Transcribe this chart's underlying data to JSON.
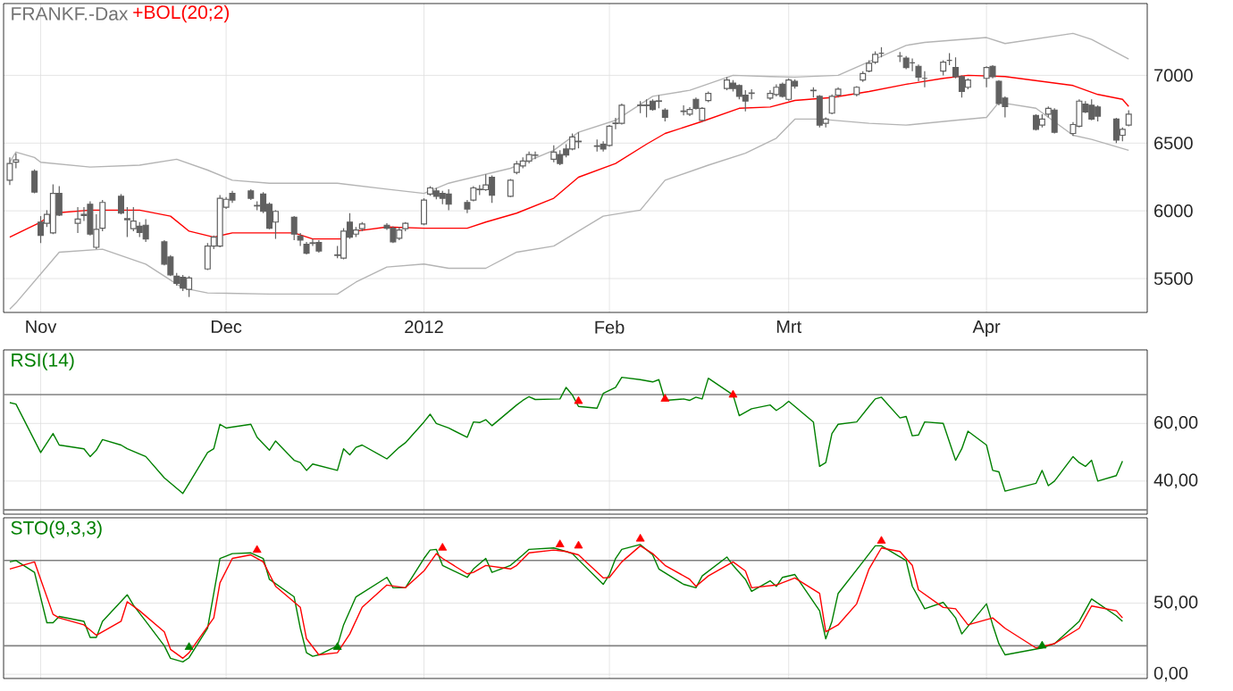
{
  "chart_data": [
    {
      "type": "candlestick",
      "title": "FRANKF.-Dax",
      "color": "#606060",
      "x": [
        "2011-10-27",
        "2011-10-28",
        "2011-10-31",
        "2011-11-01",
        "2011-11-02",
        "2011-11-03",
        "2011-11-04",
        "2011-11-07",
        "2011-11-08",
        "2011-11-09",
        "2011-11-10",
        "2011-11-11",
        "2011-11-14",
        "2011-11-15",
        "2011-11-16",
        "2011-11-17",
        "2011-11-18",
        "2011-11-21",
        "2011-11-22",
        "2011-11-23",
        "2011-11-24",
        "2011-11-25",
        "2011-11-28",
        "2011-11-29",
        "2011-11-30",
        "2011-12-01",
        "2011-12-02",
        "2011-12-05",
        "2011-12-06",
        "2011-12-07",
        "2011-12-08",
        "2011-12-09",
        "2011-12-12",
        "2011-12-13",
        "2011-12-14",
        "2011-12-15",
        "2011-12-16",
        "2011-12-19",
        "2011-12-20",
        "2011-12-21",
        "2011-12-22",
        "2011-12-23",
        "2011-12-27",
        "2011-12-28",
        "2011-12-29",
        "2011-12-30",
        "2012-01-02",
        "2012-01-03",
        "2012-01-04",
        "2012-01-05",
        "2012-01-06",
        "2012-01-09",
        "2012-01-10",
        "2012-01-11",
        "2012-01-12",
        "2012-01-13",
        "2012-01-16",
        "2012-01-17",
        "2012-01-18",
        "2012-01-19",
        "2012-01-20",
        "2012-01-23",
        "2012-01-24",
        "2012-01-25",
        "2012-01-26",
        "2012-01-27",
        "2012-01-30",
        "2012-01-31",
        "2012-02-01",
        "2012-02-02",
        "2012-02-03",
        "2012-02-06",
        "2012-02-07",
        "2012-02-08",
        "2012-02-09",
        "2012-02-10",
        "2012-02-13",
        "2012-02-14",
        "2012-02-15",
        "2012-02-16",
        "2012-02-17",
        "2012-02-20",
        "2012-02-21",
        "2012-02-22",
        "2012-02-23",
        "2012-02-24",
        "2012-02-27",
        "2012-02-28",
        "2012-02-29",
        "2012-03-01",
        "2012-03-02",
        "2012-03-05",
        "2012-03-06",
        "2012-03-07",
        "2012-03-08",
        "2012-03-09",
        "2012-03-12",
        "2012-03-13",
        "2012-03-14",
        "2012-03-15",
        "2012-03-16",
        "2012-03-19",
        "2012-03-20",
        "2012-03-21",
        "2012-03-22",
        "2012-03-23",
        "2012-03-26",
        "2012-03-27",
        "2012-03-28",
        "2012-03-29",
        "2012-03-30",
        "2012-04-02",
        "2012-04-03",
        "2012-04-04",
        "2012-04-05",
        "2012-04-10",
        "2012-04-11",
        "2012-04-12",
        "2012-04-13",
        "2012-04-16",
        "2012-04-17",
        "2012-04-18",
        "2012-04-19",
        "2012-04-20",
        "2012-04-23",
        "2012-04-24",
        "2012-04-25"
      ],
      "ohlc": [
        [
          6226,
          6394,
          6191,
          6350
        ],
        [
          6359,
          6425,
          6314,
          6376
        ],
        [
          6292,
          6306,
          6129,
          6138
        ],
        [
          5917,
          5961,
          5762,
          5819
        ],
        [
          5908,
          6005,
          5881,
          5974
        ],
        [
          5837,
          6195,
          5828,
          6129
        ],
        [
          6129,
          6182,
          5961,
          5969
        ],
        [
          5908,
          6027,
          5837,
          5939
        ],
        [
          5965,
          6027,
          5925,
          5974
        ],
        [
          6049,
          6071,
          5819,
          5828
        ],
        [
          5731,
          5974,
          5717,
          5864
        ],
        [
          5872,
          6080,
          5850,
          6062
        ],
        [
          6107,
          6124,
          5974,
          5983
        ],
        [
          5934,
          6027,
          5806,
          5943
        ],
        [
          5868,
          6027,
          5850,
          5925
        ],
        [
          5886,
          5917,
          5806,
          5841
        ],
        [
          5894,
          5939,
          5771,
          5793
        ],
        [
          5771,
          5784,
          5598,
          5607
        ],
        [
          5660,
          5673,
          5518,
          5527
        ],
        [
          5518,
          5541,
          5448,
          5465
        ],
        [
          5510,
          5527,
          5408,
          5430
        ],
        [
          5421,
          5518,
          5364,
          5505
        ],
        [
          5571,
          5762,
          5563,
          5740
        ],
        [
          5740,
          5819,
          5717,
          5806
        ],
        [
          5740,
          6116,
          5731,
          6093
        ],
        [
          6027,
          6102,
          6014,
          6085
        ],
        [
          6129,
          6147,
          6058,
          6080
        ],
        [
          6147,
          6160,
          6080,
          6093
        ],
        [
          6040,
          6071,
          6005,
          6036
        ],
        [
          6124,
          6138,
          5983,
          5996
        ],
        [
          6049,
          6062,
          5864,
          5872
        ],
        [
          5917,
          6005,
          5793,
          5996
        ],
        [
          5952,
          5961,
          5784,
          5828
        ],
        [
          5815,
          5837,
          5740,
          5784
        ],
        [
          5753,
          5771,
          5678,
          5687
        ],
        [
          5760,
          5793,
          5740,
          5764
        ],
        [
          5766,
          5784,
          5691,
          5704
        ],
        [
          5675,
          5740,
          5651,
          5671
        ],
        [
          5651,
          5872,
          5642,
          5850
        ],
        [
          5917,
          5983,
          5793,
          5806
        ],
        [
          5828,
          5881,
          5806,
          5859
        ],
        [
          5868,
          5917,
          5850,
          5903
        ],
        [
          5894,
          5908,
          5859,
          5872
        ],
        [
          5872,
          5886,
          5762,
          5771
        ],
        [
          5797,
          5881,
          5784,
          5859
        ],
        [
          5868,
          5917,
          5850,
          5908
        ],
        [
          5903,
          6093,
          5894,
          6080
        ],
        [
          6124,
          6182,
          6111,
          6169
        ],
        [
          6147,
          6169,
          6085,
          6107
        ],
        [
          6129,
          6147,
          6049,
          6093
        ],
        [
          6124,
          6160,
          6005,
          6049
        ],
        [
          6062,
          6080,
          5983,
          6014
        ],
        [
          6080,
          6182,
          6071,
          6169
        ],
        [
          6156,
          6191,
          6116,
          6160
        ],
        [
          6156,
          6270,
          6147,
          6191
        ],
        [
          6248,
          6262,
          6058,
          6116
        ],
        [
          6107,
          6235,
          6102,
          6226
        ],
        [
          6284,
          6368,
          6270,
          6346
        ],
        [
          6332,
          6394,
          6314,
          6368
        ],
        [
          6368,
          6438,
          6350,
          6416
        ],
        [
          6410,
          6438,
          6381,
          6412
        ],
        [
          6381,
          6483,
          6359,
          6434
        ],
        [
          6416,
          6447,
          6337,
          6350
        ],
        [
          6456,
          6492,
          6394,
          6412
        ],
        [
          6456,
          6571,
          6447,
          6545
        ],
        [
          6510,
          6580,
          6461,
          6514
        ],
        [
          6476,
          6527,
          6438,
          6480
        ],
        [
          6492,
          6514,
          6438,
          6456
        ],
        [
          6483,
          6633,
          6474,
          6624
        ],
        [
          6644,
          6686,
          6602,
          6648
        ],
        [
          6646,
          6792,
          6637,
          6779
        ],
        [
          6777,
          6810,
          6721,
          6781
        ],
        [
          6781,
          6823,
          6690,
          6777
        ],
        [
          6810,
          6823,
          6739,
          6748
        ],
        [
          6808,
          6854,
          6757,
          6812
        ],
        [
          6744,
          6757,
          6660,
          6690
        ],
        [
          6737,
          6779,
          6704,
          6733
        ],
        [
          6713,
          6766,
          6699,
          6748
        ],
        [
          6823,
          6836,
          6748,
          6757
        ],
        [
          6668,
          6766,
          6660,
          6757
        ],
        [
          6814,
          6881,
          6801,
          6867
        ],
        [
          6903,
          6987,
          6890,
          6965
        ],
        [
          6943,
          6965,
          6881,
          6903
        ],
        [
          6925,
          6934,
          6823,
          6845
        ],
        [
          6854,
          6890,
          6735,
          6810
        ],
        [
          6867,
          6898,
          6823,
          6870
        ],
        [
          6832,
          6890,
          6819,
          6867
        ],
        [
          6859,
          6934,
          6845,
          6912
        ],
        [
          6934,
          6947,
          6836,
          6845
        ],
        [
          6823,
          6978,
          6814,
          6965
        ],
        [
          6956,
          6969,
          6903,
          6921
        ],
        [
          6890,
          6912,
          6836,
          6887
        ],
        [
          6845,
          6854,
          6615,
          6633
        ],
        [
          6646,
          6690,
          6615,
          6677
        ],
        [
          6721,
          6859,
          6713,
          6845
        ],
        [
          6854,
          6912,
          6836,
          6898
        ],
        [
          6859,
          6921,
          6845,
          6912
        ],
        [
          6965,
          7031,
          6952,
          7014
        ],
        [
          7031,
          7111,
          7022,
          7089
        ],
        [
          7098,
          7177,
          7084,
          7155
        ],
        [
          7164,
          7208,
          7133,
          7164
        ],
        [
          7142,
          7173,
          7098,
          7142
        ],
        [
          7128,
          7142,
          7045,
          7058
        ],
        [
          7093,
          7124,
          7031,
          7093
        ],
        [
          7067,
          7080,
          6956,
          6987
        ],
        [
          6978,
          7031,
          6912,
          6978
        ],
        [
          7031,
          7111,
          7000,
          7098
        ],
        [
          7111,
          7164,
          7075,
          7111
        ],
        [
          7058,
          7133,
          6978,
          6991
        ],
        [
          6991,
          7000,
          6836,
          6881
        ],
        [
          6912,
          6978,
          6898,
          6965
        ],
        [
          6978,
          7067,
          6912,
          7058
        ],
        [
          7067,
          7075,
          6978,
          6991
        ],
        [
          6956,
          6965,
          6779,
          6792
        ],
        [
          6832,
          6845,
          6690,
          6770
        ],
        [
          6704,
          6713,
          6593,
          6602
        ],
        [
          6633,
          6713,
          6615,
          6677
        ],
        [
          6713,
          6770,
          6690,
          6757
        ],
        [
          6744,
          6757,
          6571,
          6580
        ],
        [
          6571,
          6655,
          6553,
          6637
        ],
        [
          6624,
          6823,
          6615,
          6810
        ],
        [
          6788,
          6810,
          6721,
          6730
        ],
        [
          6779,
          6823,
          6668,
          6677
        ],
        [
          6766,
          6779,
          6660,
          6699
        ],
        [
          6677,
          6686,
          6500,
          6522
        ],
        [
          6558,
          6615,
          6514,
          6602
        ],
        [
          6633,
          6743,
          6624,
          6713
        ]
      ],
      "series": [
        {
          "type": "line",
          "color": "#b4b4b4",
          "x": [
            "2011-10-27",
            "2011-10-28",
            "2011-10-31",
            "2011-11-01",
            "2011-11-09",
            "2011-11-17",
            "2011-11-23",
            "2011-11-28",
            "2011-12-02",
            "2011-12-08",
            "2011-12-19",
            "2011-12-27",
            "2012-01-02",
            "2012-01-06",
            "2012-01-16",
            "2012-01-23",
            "2012-01-27",
            "2012-02-02",
            "2012-02-08",
            "2012-02-14",
            "2012-02-21",
            "2012-02-27",
            "2012-03-02",
            "2012-03-09",
            "2012-03-20",
            "2012-03-23",
            "2012-04-02",
            "2012-04-05",
            "2012-04-16",
            "2012-04-19",
            "2012-04-25"
          ],
          "values": [
            6359,
            6434,
            6394,
            6359,
            6323,
            6337,
            6381,
            6301,
            6226,
            6204,
            6204,
            6160,
            6129,
            6204,
            6314,
            6447,
            6580,
            6668,
            6845,
            6890,
            7000,
            6991,
            6987,
            7000,
            7221,
            7243,
            7279,
            7235,
            7310,
            7265,
            7120
          ]
        },
        {
          "type": "line",
          "color": "#b4b4b4",
          "x": [
            "2011-10-27",
            "2011-10-28",
            "2011-11-04",
            "2011-11-11",
            "2011-11-18",
            "2011-11-24",
            "2011-11-28",
            "2011-12-08",
            "2011-12-19",
            "2011-12-22",
            "2011-12-27",
            "2012-01-02",
            "2012-01-06",
            "2012-01-12",
            "2012-01-17",
            "2012-01-23",
            "2012-01-31",
            "2012-02-06",
            "2012-02-10",
            "2012-02-17",
            "2012-02-23",
            "2012-02-28",
            "2012-03-02",
            "2012-03-06",
            "2012-03-14",
            "2012-03-20",
            "2012-03-28",
            "2012-04-02",
            "2012-04-04",
            "2012-04-10",
            "2012-04-16",
            "2012-04-19",
            "2012-04-25"
          ],
          "values": [
            5275,
            5320,
            5695,
            5717,
            5607,
            5430,
            5394,
            5386,
            5386,
            5474,
            5585,
            5607,
            5576,
            5576,
            5695,
            5740,
            5961,
            6005,
            6226,
            6337,
            6425,
            6536,
            6677,
            6677,
            6646,
            6633,
            6668,
            6690,
            6801,
            6757,
            6558,
            6527,
            6447
          ]
        },
        {
          "type": "line",
          "name": "+BOL(20;2)",
          "color": "#ff0000",
          "x": [
            "2011-10-27",
            "2011-11-01",
            "2011-11-03",
            "2011-11-09",
            "2011-11-17",
            "2011-11-22",
            "2011-11-25",
            "2011-11-29",
            "2011-12-02",
            "2011-12-12",
            "2011-12-15",
            "2011-12-20",
            "2011-12-22",
            "2011-12-27",
            "2012-01-02",
            "2012-01-09",
            "2012-01-12",
            "2012-01-17",
            "2012-01-23",
            "2012-01-27",
            "2012-02-02",
            "2012-02-07",
            "2012-02-10",
            "2012-02-16",
            "2012-02-22",
            "2012-02-27",
            "2012-03-02",
            "2012-03-08",
            "2012-03-14",
            "2012-03-20",
            "2012-03-26",
            "2012-03-30",
            "2012-04-05",
            "2012-04-16",
            "2012-04-20",
            "2012-04-24",
            "2012-04-25"
          ],
          "values": [
            5806,
            5917,
            5983,
            6005,
            6005,
            5961,
            5850,
            5806,
            5837,
            5837,
            5793,
            5793,
            5850,
            5881,
            5872,
            5872,
            5917,
            5983,
            6093,
            6248,
            6350,
            6492,
            6571,
            6660,
            6757,
            6766,
            6815,
            6836,
            6881,
            6934,
            6978,
            7000,
            6991,
            6925,
            6859,
            6823,
            6770
          ]
        }
      ],
      "xlim": [
        "2011-10-26",
        "2012-04-28"
      ],
      "ylim": [
        5250,
        7530
      ],
      "xticks": [
        {
          "value": "2011-11-01",
          "label": "Nov"
        },
        {
          "value": "2011-12-01",
          "label": "Dec"
        },
        {
          "value": "2012-01-02",
          "label": "2012"
        },
        {
          "value": "2012-02-01",
          "label": "Feb"
        },
        {
          "value": "2012-03-01",
          "label": "Mrt"
        },
        {
          "value": "2012-04-02",
          "label": "Apr"
        }
      ],
      "yticks": [
        5500,
        6000,
        6500,
        7000
      ],
      "grid": true,
      "legend": "top left"
    },
    {
      "type": "line",
      "series": [
        {
          "name": "RSI(14)",
          "color": "#008000",
          "x": [
            "2011-10-27",
            "2011-10-28",
            "2011-11-01",
            "2011-11-03",
            "2011-11-04",
            "2011-11-08",
            "2011-11-09",
            "2011-11-10",
            "2011-11-11",
            "2011-11-14",
            "2011-11-15",
            "2011-11-18",
            "2011-11-21",
            "2011-11-24",
            "2011-11-25",
            "2011-11-28",
            "2011-11-29",
            "2011-11-30",
            "2011-12-01",
            "2011-12-05",
            "2011-12-06",
            "2011-12-08",
            "2011-12-09",
            "2011-12-12",
            "2011-12-13",
            "2011-12-14",
            "2011-12-15",
            "2011-12-19",
            "2011-12-20",
            "2011-12-21",
            "2011-12-22",
            "2011-12-23",
            "2011-12-27",
            "2011-12-29",
            "2011-12-30",
            "2012-01-02",
            "2012-01-03",
            "2012-01-04",
            "2012-01-06",
            "2012-01-09",
            "2012-01-10",
            "2012-01-11",
            "2012-01-12",
            "2012-01-13",
            "2012-01-17",
            "2012-01-18",
            "2012-01-19",
            "2012-01-20",
            "2012-01-24",
            "2012-01-25",
            "2012-01-26",
            "2012-01-27",
            "2012-01-30",
            "2012-01-31",
            "2012-02-02",
            "2012-02-03",
            "2012-02-06",
            "2012-02-08",
            "2012-02-09",
            "2012-02-10",
            "2012-02-13",
            "2012-02-14",
            "2012-02-15",
            "2012-02-16",
            "2012-02-17",
            "2012-02-21",
            "2012-02-22",
            "2012-02-24",
            "2012-02-27",
            "2012-02-28",
            "2012-02-29",
            "2012-03-01",
            "2012-03-02",
            "2012-03-05",
            "2012-03-06",
            "2012-03-07",
            "2012-03-08",
            "2012-03-09",
            "2012-03-12",
            "2012-03-14",
            "2012-03-15",
            "2012-03-16",
            "2012-03-19",
            "2012-03-20",
            "2012-03-21",
            "2012-03-22",
            "2012-03-23",
            "2012-03-26",
            "2012-03-28",
            "2012-03-29",
            "2012-03-30",
            "2012-04-02",
            "2012-04-03",
            "2012-04-04",
            "2012-04-05",
            "2012-04-10",
            "2012-04-11",
            "2012-04-12",
            "2012-04-13",
            "2012-04-16",
            "2012-04-17",
            "2012-04-18",
            "2012-04-19",
            "2012-04-20",
            "2012-04-23",
            "2012-04-24"
          ],
          "values": [
            67.2,
            66.7,
            49.9,
            56.5,
            52.5,
            51.2,
            48.5,
            50.7,
            54.4,
            52.5,
            51.2,
            48.5,
            41.1,
            35.7,
            39.2,
            49.9,
            51.2,
            59.7,
            58.4,
            59.7,
            55.2,
            50.7,
            53.9,
            47.2,
            46.4,
            43.7,
            45.9,
            43.7,
            51.2,
            49.1,
            51.7,
            52.5,
            47.7,
            51.7,
            53.3,
            60.5,
            63.2,
            60.0,
            58.4,
            55.2,
            60.5,
            60.3,
            61.3,
            59.2,
            66.4,
            68.0,
            69.3,
            68.3,
            68.5,
            72.5,
            69.9,
            65.9,
            65.3,
            70.4,
            72.5,
            76.0,
            75.2,
            74.4,
            75.2,
            68.0,
            68.5,
            68.0,
            69.1,
            68.5,
            75.7,
            69.9,
            62.7,
            65.1,
            66.4,
            64.5,
            65.9,
            67.7,
            65.9,
            60.5,
            45.1,
            46.4,
            56.5,
            59.7,
            60.5,
            65.9,
            68.5,
            69.1,
            61.9,
            62.4,
            55.7,
            56.0,
            60.5,
            60.0,
            47.2,
            51.2,
            57.3,
            52.5,
            43.7,
            43.2,
            36.5,
            39.2,
            43.7,
            38.4,
            40.0,
            48.5,
            46.4,
            45.1,
            47.2,
            40.0,
            41.9,
            46.9
          ]
        },
        {
          "type": "scatter",
          "color": "#ff0000",
          "marker": "triangle",
          "x": [
            "2012-01-27",
            "2012-02-10",
            "2012-02-21"
          ],
          "values": [
            67.7,
            68.5,
            69.9
          ]
        }
      ],
      "xlim": [
        "2011-10-26",
        "2012-04-28"
      ],
      "ylim": [
        28.5,
        85.5
      ],
      "xticks": [
        {
          "value": "2011-11-01",
          "label": null
        },
        {
          "value": "2011-12-01",
          "label": null
        },
        {
          "value": "2012-01-02",
          "label": null
        },
        {
          "value": "2012-02-01",
          "label": null
        },
        {
          "value": "2012-03-01",
          "label": null
        },
        {
          "value": "2012-04-02",
          "label": null
        }
      ],
      "yticks": [
        {
          "value": 40,
          "label": "40,00"
        },
        {
          "value": 60,
          "label": "60,00"
        }
      ],
      "tick_labels": "y",
      "grid": true,
      "legend": "top left",
      "ref_lines": [
        {
          "axis": "y",
          "value": 70,
          "color": "#808080"
        },
        {
          "axis": "y",
          "value": 30,
          "color": "#808080"
        }
      ]
    },
    {
      "type": "line",
      "series": [
        {
          "name": "STO(9,3,3)",
          "color": "#008000",
          "x": [
            "2011-10-27",
            "2011-10-28",
            "2011-10-31",
            "2011-11-02",
            "2011-11-03",
            "2011-11-04",
            "2011-11-08",
            "2011-11-09",
            "2011-11-10",
            "2011-11-11",
            "2011-11-15",
            "2011-11-16",
            "2011-11-18",
            "2011-11-21",
            "2011-11-22",
            "2011-11-24",
            "2011-11-25",
            "2011-11-28",
            "2011-11-29",
            "2011-11-30",
            "2011-12-02",
            "2011-12-05",
            "2011-12-07",
            "2011-12-08",
            "2011-12-12",
            "2011-12-13",
            "2011-12-14",
            "2011-12-15",
            "2011-12-16",
            "2011-12-19",
            "2011-12-20",
            "2011-12-22",
            "2011-12-27",
            "2011-12-28",
            "2011-12-30",
            "2012-01-02",
            "2012-01-03",
            "2012-01-04",
            "2012-01-05",
            "2012-01-09",
            "2012-01-10",
            "2012-01-12",
            "2012-01-13",
            "2012-01-16",
            "2012-01-18",
            "2012-01-19",
            "2012-01-23",
            "2012-01-25",
            "2012-01-26",
            "2012-01-27",
            "2012-01-31",
            "2012-02-01",
            "2012-02-02",
            "2012-02-03",
            "2012-02-06",
            "2012-02-08",
            "2012-02-09",
            "2012-02-13",
            "2012-02-15",
            "2012-02-16",
            "2012-02-20",
            "2012-02-21",
            "2012-02-23",
            "2012-02-24",
            "2012-02-27",
            "2012-02-28",
            "2012-02-29",
            "2012-03-02",
            "2012-03-06",
            "2012-03-07",
            "2012-03-08",
            "2012-03-09",
            "2012-03-13",
            "2012-03-15",
            "2012-03-16",
            "2012-03-20",
            "2012-03-21",
            "2012-03-23",
            "2012-03-26",
            "2012-03-28",
            "2012-03-29",
            "2012-04-02",
            "2012-04-03",
            "2012-04-04",
            "2012-04-05",
            "2012-04-11",
            "2012-04-13",
            "2012-04-17",
            "2012-04-19",
            "2012-04-23",
            "2012-04-24"
          ],
          "values": [
            79.0,
            79.9,
            71.6,
            36.2,
            36.2,
            40.6,
            37.2,
            25.9,
            25.9,
            37.2,
            55.9,
            48.5,
            37.2,
            20.0,
            11.2,
            8.7,
            11.6,
            32.3,
            56.8,
            81.4,
            84.8,
            85.3,
            81.4,
            66.7,
            54.4,
            32.3,
            15.1,
            12.6,
            13.6,
            20.0,
            34.7,
            54.4,
            68.1,
            60.8,
            60.8,
            81.4,
            87.3,
            87.8,
            76.5,
            68.1,
            74.0,
            81.4,
            71.6,
            76.5,
            83.9,
            87.8,
            88.8,
            86.3,
            84.8,
            80.4,
            63.2,
            70.1,
            81.4,
            87.8,
            91.2,
            83.9,
            74.0,
            63.2,
            60.8,
            69.1,
            82.4,
            76.5,
            66.7,
            58.3,
            65.7,
            61.8,
            68.1,
            70.1,
            44.6,
            24.9,
            37.2,
            56.8,
            79.0,
            90.3,
            90.3,
            79.9,
            61.8,
            46.0,
            50.5,
            39.6,
            28.3,
            49.5,
            34.7,
            21.5,
            13.6,
            18.5,
            21.5,
            37.2,
            52.9,
            41.1,
            37.2
          ]
        },
        {
          "color": "#ff0000",
          "x": [
            "2011-10-27",
            "2011-10-31",
            "2011-11-01",
            "2011-11-03",
            "2011-11-04",
            "2011-11-08",
            "2011-11-10",
            "2011-11-14",
            "2011-11-15",
            "2011-11-17",
            "2011-11-21",
            "2011-11-22",
            "2011-11-24",
            "2011-11-25",
            "2011-11-29",
            "2011-11-30",
            "2011-12-02",
            "2011-12-05",
            "2011-12-07",
            "2011-12-09",
            "2011-12-13",
            "2011-12-14",
            "2011-12-16",
            "2011-12-19",
            "2011-12-21",
            "2011-12-23",
            "2011-12-27",
            "2011-12-30",
            "2012-01-02",
            "2012-01-04",
            "2012-01-05",
            "2012-01-09",
            "2012-01-10",
            "2012-01-12",
            "2012-01-16",
            "2012-01-17",
            "2012-01-19",
            "2012-01-23",
            "2012-01-25",
            "2012-01-27",
            "2012-01-31",
            "2012-02-01",
            "2012-02-03",
            "2012-02-06",
            "2012-02-08",
            "2012-02-10",
            "2012-02-14",
            "2012-02-15",
            "2012-02-17",
            "2012-02-21",
            "2012-02-23",
            "2012-02-24",
            "2012-02-28",
            "2012-03-02",
            "2012-03-06",
            "2012-03-07",
            "2012-03-09",
            "2012-03-12",
            "2012-03-14",
            "2012-03-16",
            "2012-03-19",
            "2012-03-21",
            "2012-03-22",
            "2012-03-26",
            "2012-03-28",
            "2012-03-30",
            "2012-04-03",
            "2012-04-05",
            "2012-04-10",
            "2012-04-13",
            "2012-04-17",
            "2012-04-19",
            "2012-04-23",
            "2012-04-24"
          ],
          "values": [
            74.0,
            79.0,
            66.7,
            42.1,
            39.6,
            34.7,
            27.4,
            37.2,
            51.0,
            44.6,
            29.8,
            17.5,
            11.2,
            15.1,
            39.6,
            64.2,
            81.4,
            83.9,
            79.0,
            61.8,
            47.0,
            24.9,
            13.6,
            15.1,
            28.3,
            47.0,
            62.7,
            60.8,
            72.6,
            84.8,
            81.4,
            70.6,
            71.6,
            76.5,
            74.0,
            76.5,
            85.3,
            87.3,
            86.3,
            83.9,
            67.7,
            68.1,
            79.0,
            90.3,
            84.8,
            76.5,
            66.7,
            61.8,
            69.1,
            79.0,
            72.6,
            60.8,
            62.7,
            67.7,
            56.8,
            29.8,
            34.7,
            49.5,
            74.0,
            88.8,
            86.3,
            76.5,
            59.3,
            47.0,
            46.0,
            34.7,
            39.6,
            32.3,
            18.5,
            21.5,
            32.3,
            48.0,
            44.6,
            39.6
          ]
        },
        {
          "type": "scatter",
          "color": "#ff0000",
          "marker": "triangle",
          "x": [
            "2011-12-06",
            "2012-01-05",
            "2012-01-24",
            "2012-01-27",
            "2012-02-06",
            "2012-03-16"
          ],
          "values": [
            87.3,
            88.8,
            91.2,
            90.3,
            95.2,
            93.7
          ]
        },
        {
          "type": "scatter",
          "color": "#008000",
          "marker": "triangle",
          "x": [
            "2011-11-25",
            "2011-12-19",
            "2012-04-11"
          ],
          "values": [
            19.0,
            19.0,
            20.0
          ]
        }
      ],
      "xlim": [
        "2011-10-26",
        "2012-04-28"
      ],
      "ylim": [
        -3,
        110
      ],
      "xticks": [
        {
          "value": "2011-11-01",
          "label": null
        },
        {
          "value": "2011-12-01",
          "label": null
        },
        {
          "value": "2012-01-02",
          "label": null
        },
        {
          "value": "2012-02-01",
          "label": null
        },
        {
          "value": "2012-03-01",
          "label": null
        },
        {
          "value": "2012-04-02",
          "label": null
        }
      ],
      "yticks": [
        {
          "value": 0,
          "label": "0,00"
        },
        {
          "value": 50,
          "label": "50,00"
        }
      ],
      "tick_labels": "y",
      "grid": true,
      "legend": "top left",
      "ref_lines": [
        {
          "axis": "y",
          "value": 80,
          "color": "#808080"
        },
        {
          "axis": "y",
          "value": 20,
          "color": "#808080"
        }
      ]
    }
  ]
}
